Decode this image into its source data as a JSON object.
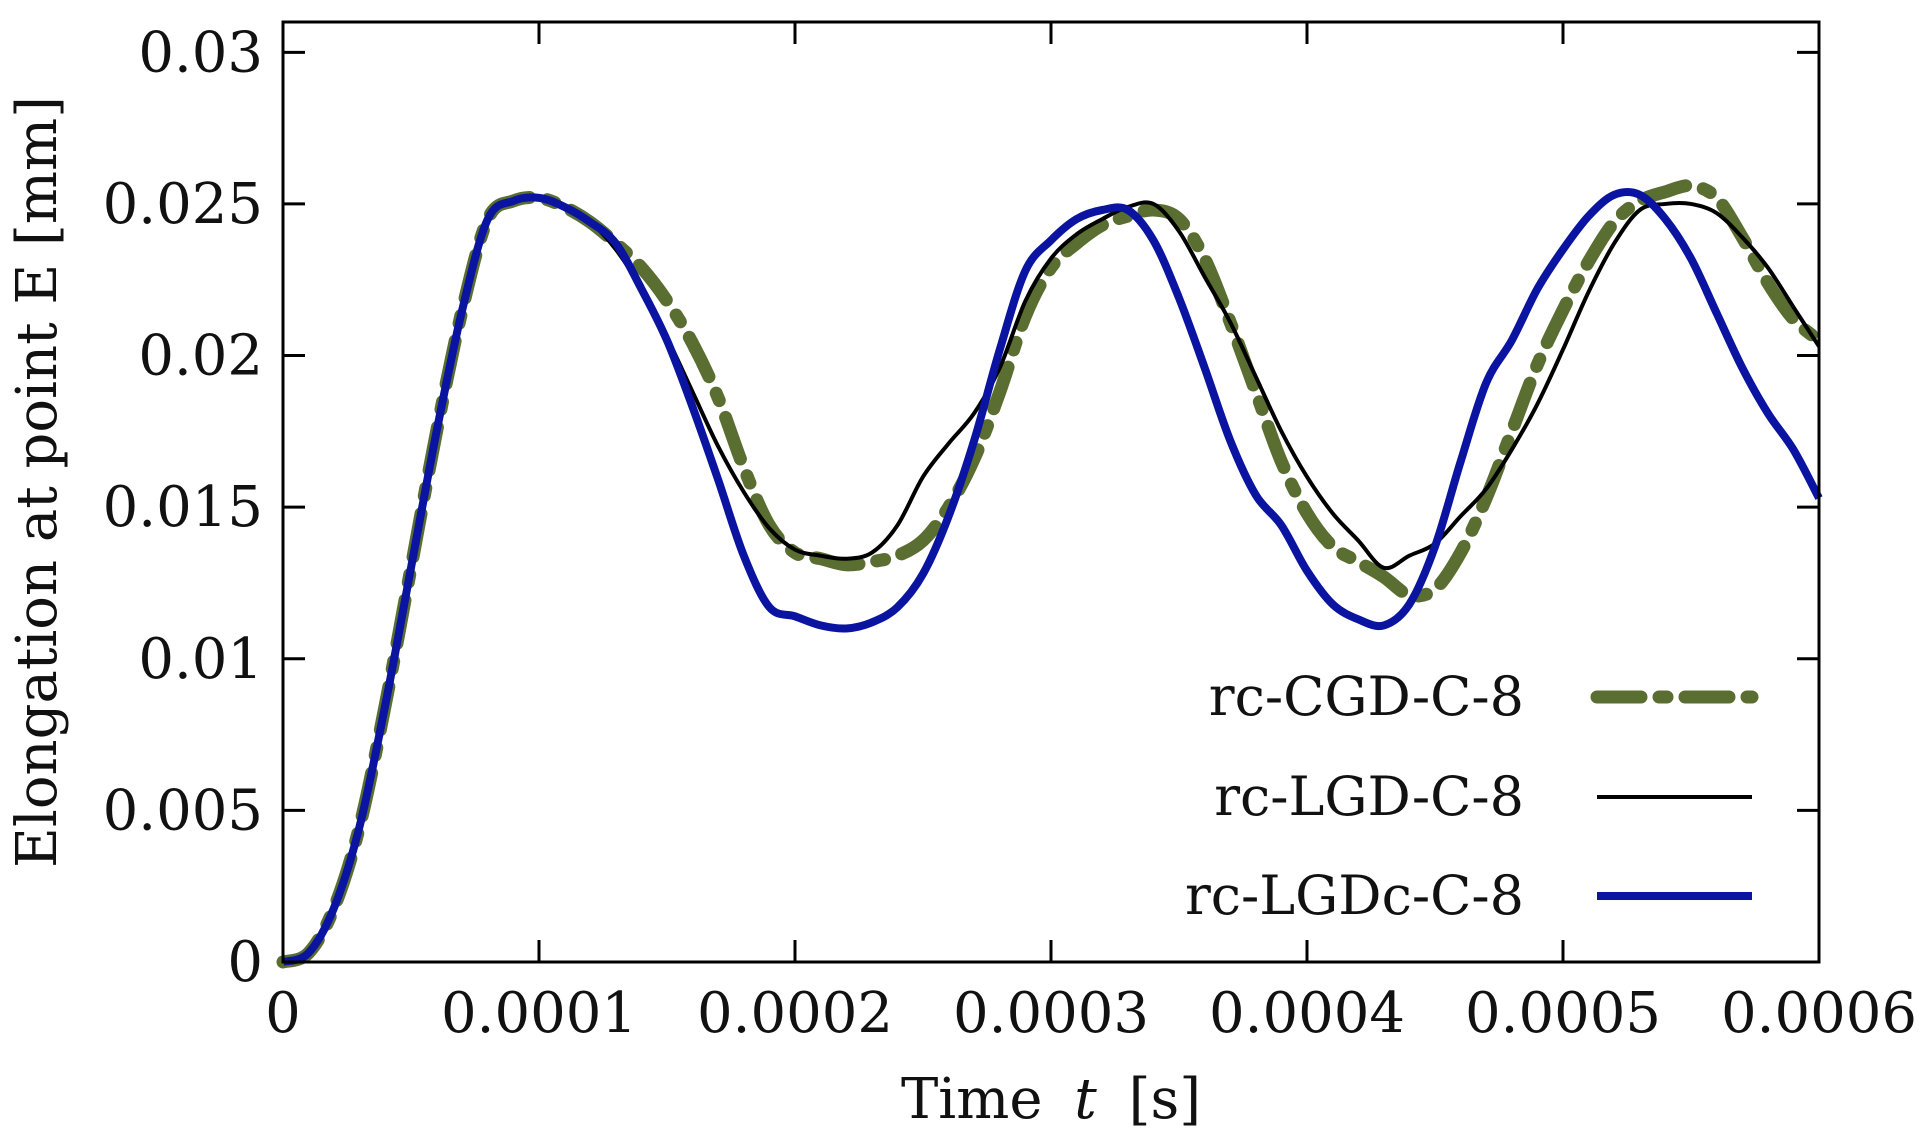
{
  "chart_data": {
    "type": "line",
    "title": "",
    "xlabel": "Time",
    "xlabel_var": "t",
    "xlabel_unit": "[s]",
    "ylabel": "Elongation at point E [mm]",
    "xlim": [
      0,
      0.0006
    ],
    "ylim": [
      0,
      0.031
    ],
    "xticks": [
      0,
      0.0001,
      0.0002,
      0.0003,
      0.0004,
      0.0005,
      0.0006
    ],
    "xtick_labels": [
      "0",
      "0.0001",
      "0.0002",
      "0.0003",
      "0.0004",
      "0.0005",
      "0.0006"
    ],
    "yticks": [
      0,
      0.005,
      0.01,
      0.015,
      0.02,
      0.025,
      0.03
    ],
    "ytick_labels": [
      "0",
      "0.005",
      "0.01",
      "0.015",
      "0.02",
      "0.025",
      "0.03"
    ],
    "grid": false,
    "legend_position": "bottom-right",
    "series": [
      {
        "name": "rc-CGD-C-8",
        "color": "#5a6e32",
        "style": "dash-dot",
        "x": [
          0,
          1e-05,
          2e-05,
          3e-05,
          4e-05,
          5e-05,
          6e-05,
          7e-05,
          8e-05,
          9e-05,
          0.0001,
          0.00011,
          0.00012,
          0.00013,
          0.00014,
          0.00015,
          0.00016,
          0.00017,
          0.00018,
          0.00019,
          0.0002,
          0.00021,
          0.00022,
          0.00023,
          0.00024,
          0.00025,
          0.00026,
          0.00027,
          0.00028,
          0.00029,
          0.0003,
          0.00031,
          0.00032,
          0.00033,
          0.00034,
          0.00035,
          0.00036,
          0.00037,
          0.00038,
          0.00039,
          0.0004,
          0.00041,
          0.00042,
          0.00043,
          0.00044,
          0.00045,
          0.00046,
          0.00047,
          0.00048,
          0.00049,
          0.0005,
          0.00051,
          0.00052,
          0.00053,
          0.00054,
          0.00055,
          0.00056,
          0.00057,
          0.00058,
          0.00059,
          0.0006
        ],
        "values": [
          0,
          0.0003,
          0.0018,
          0.0045,
          0.0085,
          0.013,
          0.0175,
          0.0215,
          0.0245,
          0.0251,
          0.0252,
          0.0249,
          0.0244,
          0.0237,
          0.0229,
          0.0218,
          0.0204,
          0.0186,
          0.0163,
          0.0144,
          0.0135,
          0.0133,
          0.0131,
          0.0132,
          0.0134,
          0.0139,
          0.015,
          0.0166,
          0.0188,
          0.0213,
          0.0229,
          0.0237,
          0.0243,
          0.0246,
          0.0248,
          0.0245,
          0.0232,
          0.0211,
          0.0188,
          0.0165,
          0.0148,
          0.0137,
          0.0132,
          0.0127,
          0.0121,
          0.0123,
          0.0135,
          0.0153,
          0.0175,
          0.0197,
          0.0215,
          0.0231,
          0.0244,
          0.0251,
          0.0254,
          0.0256,
          0.0252,
          0.0239,
          0.0224,
          0.0212,
          0.0205
        ]
      },
      {
        "name": "rc-LGD-C-8",
        "color": "#000000",
        "style": "solid-thin",
        "x": [
          0,
          1e-05,
          2e-05,
          3e-05,
          4e-05,
          5e-05,
          6e-05,
          7e-05,
          8e-05,
          9e-05,
          0.0001,
          0.00011,
          0.00012,
          0.00013,
          0.00014,
          0.00015,
          0.00016,
          0.00017,
          0.00018,
          0.00019,
          0.0002,
          0.00021,
          0.00022,
          0.00023,
          0.00024,
          0.00025,
          0.00026,
          0.00027,
          0.00028,
          0.00029,
          0.0003,
          0.00031,
          0.00032,
          0.00033,
          0.00034,
          0.00035,
          0.00036,
          0.00037,
          0.00038,
          0.00039,
          0.0004,
          0.00041,
          0.00042,
          0.00043,
          0.00044,
          0.00045,
          0.00046,
          0.00047,
          0.00048,
          0.00049,
          0.0005,
          0.00051,
          0.00052,
          0.00053,
          0.00054,
          0.00055,
          0.00056,
          0.00057,
          0.00058,
          0.00059,
          0.0006
        ],
        "values": [
          0,
          0.0003,
          0.0018,
          0.0045,
          0.0085,
          0.013,
          0.0175,
          0.0215,
          0.0245,
          0.0251,
          0.0252,
          0.0249,
          0.0244,
          0.0235,
          0.0222,
          0.0206,
          0.0188,
          0.017,
          0.0155,
          0.0143,
          0.0136,
          0.0134,
          0.0133,
          0.0135,
          0.0144,
          0.016,
          0.0171,
          0.0181,
          0.0196,
          0.0218,
          0.0232,
          0.024,
          0.0245,
          0.0249,
          0.025,
          0.0241,
          0.0226,
          0.0211,
          0.0193,
          0.0175,
          0.016,
          0.0148,
          0.0139,
          0.013,
          0.0134,
          0.0138,
          0.0147,
          0.0156,
          0.0169,
          0.0184,
          0.0202,
          0.0221,
          0.0237,
          0.0248,
          0.025,
          0.025,
          0.0247,
          0.0239,
          0.0229,
          0.0216,
          0.0203
        ]
      },
      {
        "name": "rc-LGDc-C-8",
        "color": "#0a14a0",
        "style": "solid-thick",
        "x": [
          0,
          1e-05,
          2e-05,
          3e-05,
          4e-05,
          5e-05,
          6e-05,
          7e-05,
          8e-05,
          9e-05,
          0.0001,
          0.00011,
          0.00012,
          0.00013,
          0.00014,
          0.00015,
          0.00016,
          0.00017,
          0.00018,
          0.00019,
          0.0002,
          0.00021,
          0.00022,
          0.00023,
          0.00024,
          0.00025,
          0.00026,
          0.00027,
          0.00028,
          0.00029,
          0.0003,
          0.00031,
          0.00032,
          0.00033,
          0.00034,
          0.00035,
          0.00036,
          0.00037,
          0.00038,
          0.00039,
          0.0004,
          0.00041,
          0.00042,
          0.00043,
          0.00044,
          0.00045,
          0.00046,
          0.00047,
          0.00048,
          0.00049,
          0.0005,
          0.00051,
          0.00052,
          0.00053,
          0.00054,
          0.00055,
          0.00056,
          0.00057,
          0.00058,
          0.00059,
          0.0006
        ],
        "values": [
          0,
          0.0003,
          0.0018,
          0.0045,
          0.0085,
          0.013,
          0.0175,
          0.0215,
          0.0245,
          0.0251,
          0.0252,
          0.0249,
          0.0244,
          0.0237,
          0.0222,
          0.0205,
          0.0183,
          0.0159,
          0.0134,
          0.0117,
          0.0114,
          0.0111,
          0.011,
          0.0112,
          0.0117,
          0.0128,
          0.0147,
          0.0172,
          0.0202,
          0.0228,
          0.0238,
          0.0245,
          0.0248,
          0.0248,
          0.0238,
          0.0219,
          0.0196,
          0.0172,
          0.0154,
          0.0144,
          0.0129,
          0.0118,
          0.0113,
          0.0111,
          0.0118,
          0.0137,
          0.0165,
          0.0191,
          0.0205,
          0.0222,
          0.0235,
          0.0246,
          0.0253,
          0.0253,
          0.0245,
          0.0232,
          0.0214,
          0.0196,
          0.0181,
          0.0169,
          0.0153
        ]
      }
    ]
  }
}
